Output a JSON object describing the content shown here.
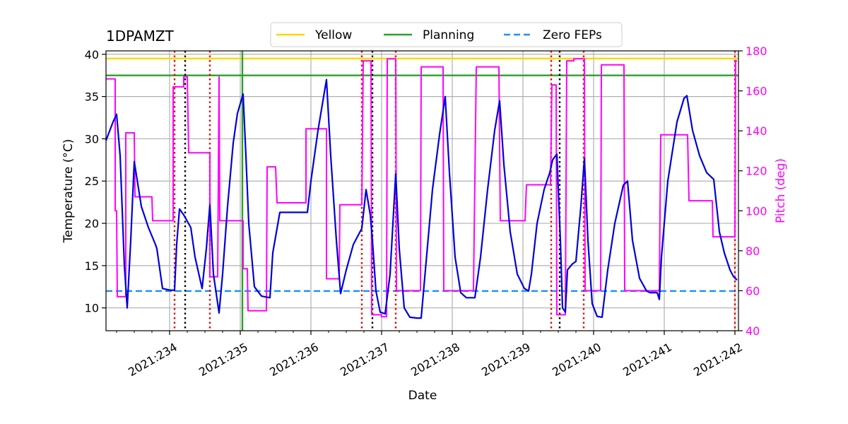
{
  "chart_data": {
    "type": "line",
    "title": "1DPAMZT",
    "xlabel": "Date",
    "ylabel": "Temperature ($^\\circ$C)",
    "ylabel_display": "Temperature (°C)",
    "y2label": "Pitch (deg)",
    "xlim": [
      233.1,
      242.05
    ],
    "ylim": [
      7.3,
      40.4
    ],
    "y2lim": [
      40,
      180
    ],
    "x_ticks": [
      234,
      235,
      236,
      237,
      238,
      239,
      240,
      241,
      242
    ],
    "x_tick_labels": [
      "2021:234",
      "2021:235",
      "2021:236",
      "2021:237",
      "2021:238",
      "2021:239",
      "2021:240",
      "2021:241",
      "2021:242"
    ],
    "y_ticks": [
      10,
      15,
      20,
      25,
      30,
      35,
      40
    ],
    "y_tick_labels": [
      "10",
      "15",
      "20",
      "25",
      "30",
      "35",
      "40"
    ],
    "y2_ticks": [
      40,
      60,
      80,
      100,
      120,
      140,
      160,
      180
    ],
    "y2_tick_labels": [
      "40",
      "60",
      "80",
      "100",
      "120",
      "140",
      "160",
      "180"
    ],
    "grid": true,
    "legend_position": "top-center",
    "colors": {
      "temperature": "#0000dd",
      "pitch": "#ff00ff",
      "yellow": "#ffd700",
      "planning": "#2ca02c",
      "zero_feps": "#1e90ff",
      "red_marker": "#ee0000",
      "black_marker": "#000000",
      "grid": "#b0b0b0"
    },
    "legend": [
      {
        "label": "Yellow",
        "style": "solid",
        "color": "#ffd700"
      },
      {
        "label": "Planning",
        "style": "solid",
        "color": "#2ca02c"
      },
      {
        "label": "Zero FEPs",
        "style": "dashed",
        "color": "#1e90ff"
      }
    ],
    "limits": [
      {
        "label": "Yellow",
        "y": 39.5
      },
      {
        "label": "Planning",
        "y": 37.5
      },
      {
        "label": "Zero FEPs",
        "y": 12.0
      }
    ],
    "planning_vline_x": 235.03,
    "red_dotted_vlines": [
      234.07,
      234.57,
      236.72,
      237.2,
      239.4,
      239.86,
      242.0
    ],
    "black_dotted_vlines": [
      234.22,
      236.87,
      239.52
    ],
    "temperature_series": {
      "name": "1DPAMZT",
      "points": [
        [
          233.1,
          29.8
        ],
        [
          233.2,
          32.0
        ],
        [
          233.25,
          32.9
        ],
        [
          233.3,
          28.0
        ],
        [
          233.36,
          15.0
        ],
        [
          233.4,
          10.0
        ],
        [
          233.45,
          18.0
        ],
        [
          233.5,
          27.3
        ],
        [
          233.6,
          22.0
        ],
        [
          233.7,
          19.5
        ],
        [
          233.8,
          17.5
        ],
        [
          233.82,
          17.0
        ],
        [
          233.9,
          12.3
        ],
        [
          234.0,
          12.1
        ],
        [
          234.07,
          12.1
        ],
        [
          234.1,
          17.5
        ],
        [
          234.14,
          21.7
        ],
        [
          234.2,
          21.0
        ],
        [
          234.3,
          19.5
        ],
        [
          234.36,
          16.0
        ],
        [
          234.46,
          12.3
        ],
        [
          234.52,
          17.0
        ],
        [
          234.57,
          22.2
        ],
        [
          234.62,
          14.0
        ],
        [
          234.7,
          9.4
        ],
        [
          234.75,
          14.0
        ],
        [
          234.82,
          22.0
        ],
        [
          234.9,
          29.5
        ],
        [
          234.96,
          33.0
        ],
        [
          235.04,
          35.3
        ],
        [
          235.08,
          28.0
        ],
        [
          235.12,
          20.0
        ],
        [
          235.2,
          12.5
        ],
        [
          235.3,
          11.4
        ],
        [
          235.35,
          11.3
        ],
        [
          235.42,
          11.2
        ],
        [
          235.46,
          16.5
        ],
        [
          235.56,
          21.3
        ],
        [
          235.7,
          21.3
        ],
        [
          235.9,
          21.3
        ],
        [
          235.95,
          21.3
        ],
        [
          236.0,
          25.0
        ],
        [
          236.1,
          31.0
        ],
        [
          236.2,
          36.0
        ],
        [
          236.22,
          37.0
        ],
        [
          236.28,
          28.0
        ],
        [
          236.36,
          18.0
        ],
        [
          236.42,
          11.7
        ],
        [
          236.5,
          14.5
        ],
        [
          236.6,
          17.5
        ],
        [
          236.72,
          19.4
        ],
        [
          236.78,
          24.0
        ],
        [
          236.84,
          21.0
        ],
        [
          236.87,
          18.0
        ],
        [
          236.92,
          12.0
        ],
        [
          236.98,
          9.5
        ],
        [
          237.05,
          9.3
        ],
        [
          237.12,
          14.0
        ],
        [
          237.2,
          25.9
        ],
        [
          237.25,
          17.0
        ],
        [
          237.32,
          10.0
        ],
        [
          237.4,
          8.9
        ],
        [
          237.5,
          8.8
        ],
        [
          237.56,
          8.8
        ],
        [
          237.62,
          14.5
        ],
        [
          237.72,
          24.0
        ],
        [
          237.82,
          30.5
        ],
        [
          237.9,
          35.0
        ],
        [
          237.96,
          26.0
        ],
        [
          238.04,
          16.0
        ],
        [
          238.12,
          11.8
        ],
        [
          238.2,
          11.2
        ],
        [
          238.3,
          11.2
        ],
        [
          238.32,
          11.2
        ],
        [
          238.4,
          16.0
        ],
        [
          238.5,
          24.0
        ],
        [
          238.6,
          31.0
        ],
        [
          238.67,
          34.5
        ],
        [
          238.73,
          27.0
        ],
        [
          238.82,
          19.0
        ],
        [
          238.92,
          14.0
        ],
        [
          239.02,
          12.3
        ],
        [
          239.08,
          12.0
        ],
        [
          239.12,
          14.0
        ],
        [
          239.2,
          20.0
        ],
        [
          239.3,
          24.0
        ],
        [
          239.38,
          26.0
        ],
        [
          239.42,
          27.5
        ],
        [
          239.48,
          28.2
        ],
        [
          239.53,
          18.0
        ],
        [
          239.56,
          10.0
        ],
        [
          239.6,
          9.5
        ],
        [
          239.63,
          14.5
        ],
        [
          239.7,
          15.2
        ],
        [
          239.75,
          15.5
        ],
        [
          239.82,
          22.0
        ],
        [
          239.87,
          27.7
        ],
        [
          239.92,
          18.0
        ],
        [
          239.98,
          10.5
        ],
        [
          240.05,
          9.0
        ],
        [
          240.12,
          8.9
        ],
        [
          240.2,
          14.5
        ],
        [
          240.3,
          20.0
        ],
        [
          240.42,
          24.5
        ],
        [
          240.48,
          25.0
        ],
        [
          240.55,
          18.0
        ],
        [
          240.65,
          13.5
        ],
        [
          240.75,
          12.0
        ],
        [
          240.8,
          11.8
        ],
        [
          240.9,
          11.8
        ],
        [
          240.93,
          11.0
        ],
        [
          240.96,
          16.0
        ],
        [
          241.05,
          25.0
        ],
        [
          241.18,
          32.0
        ],
        [
          241.28,
          34.8
        ],
        [
          241.32,
          35.1
        ],
        [
          241.4,
          31.0
        ],
        [
          241.5,
          28.0
        ],
        [
          241.6,
          26.0
        ],
        [
          241.7,
          25.2
        ],
        [
          241.78,
          19.0
        ],
        [
          241.85,
          16.5
        ],
        [
          241.93,
          14.5
        ],
        [
          241.98,
          13.7
        ],
        [
          242.03,
          13.3
        ]
      ]
    },
    "pitch_series": {
      "name": "Pitch",
      "points": [
        [
          233.1,
          166
        ],
        [
          233.23,
          166
        ],
        [
          233.23,
          100
        ],
        [
          233.25,
          100
        ],
        [
          233.26,
          57
        ],
        [
          233.38,
          57
        ],
        [
          233.38,
          139
        ],
        [
          233.5,
          139
        ],
        [
          233.51,
          107
        ],
        [
          233.75,
          107
        ],
        [
          233.76,
          95
        ],
        [
          234.03,
          95
        ],
        [
          234.05,
          95
        ],
        [
          234.05,
          162
        ],
        [
          234.2,
          162
        ],
        [
          234.2,
          167
        ],
        [
          234.25,
          167
        ],
        [
          234.27,
          129
        ],
        [
          234.57,
          129
        ],
        [
          234.57,
          67
        ],
        [
          234.68,
          67
        ],
        [
          234.7,
          167
        ],
        [
          234.71,
          95
        ],
        [
          234.99,
          95
        ],
        [
          235.04,
          95
        ],
        [
          235.04,
          71
        ],
        [
          235.1,
          71
        ],
        [
          235.11,
          50
        ],
        [
          235.37,
          50
        ],
        [
          235.38,
          122
        ],
        [
          235.5,
          122
        ],
        [
          235.52,
          104
        ],
        [
          235.93,
          104
        ],
        [
          235.93,
          141
        ],
        [
          236.22,
          141
        ],
        [
          236.22,
          66
        ],
        [
          236.4,
          66
        ],
        [
          236.41,
          103
        ],
        [
          236.72,
          103
        ],
        [
          236.74,
          175
        ],
        [
          236.85,
          175
        ],
        [
          236.86,
          48
        ],
        [
          237.0,
          48
        ],
        [
          237.0,
          47
        ],
        [
          237.07,
          47
        ],
        [
          237.08,
          176
        ],
        [
          237.2,
          176
        ],
        [
          237.21,
          60
        ],
        [
          237.55,
          60
        ],
        [
          237.56,
          172
        ],
        [
          237.87,
          172
        ],
        [
          237.88,
          60
        ],
        [
          238.3,
          60
        ],
        [
          238.34,
          172
        ],
        [
          238.66,
          172
        ],
        [
          238.68,
          95
        ],
        [
          239.03,
          95
        ],
        [
          239.05,
          113
        ],
        [
          239.39,
          113
        ],
        [
          239.41,
          163
        ],
        [
          239.47,
          163
        ],
        [
          239.48,
          48
        ],
        [
          239.6,
          48
        ],
        [
          239.62,
          175
        ],
        [
          239.72,
          175
        ],
        [
          239.72,
          176
        ],
        [
          239.87,
          176
        ],
        [
          239.88,
          60
        ],
        [
          240.1,
          60
        ],
        [
          240.11,
          173
        ],
        [
          240.43,
          173
        ],
        [
          240.44,
          60
        ],
        [
          240.93,
          60
        ],
        [
          240.95,
          138
        ],
        [
          241.33,
          138
        ],
        [
          241.35,
          105
        ],
        [
          241.68,
          105
        ],
        [
          241.69,
          87
        ],
        [
          242.0,
          87
        ],
        [
          242.01,
          175
        ],
        [
          242.03,
          175
        ]
      ]
    }
  }
}
